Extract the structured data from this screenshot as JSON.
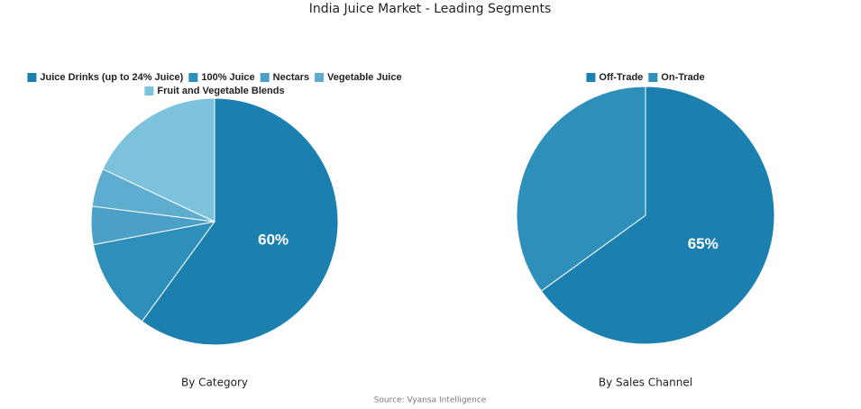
{
  "title": "India Juice Market - Leading Segments",
  "source": "Source: Vyansa Intelligence",
  "chart_data": [
    {
      "type": "pie",
      "subtitle": "By Category",
      "categories": [
        "Juice Drinks (up to 24% Juice)",
        "100% Juice",
        "Nectars",
        "Vegetable Juice",
        "Fruit and Vegetable Blends"
      ],
      "values": [
        60,
        12,
        5,
        5,
        18
      ],
      "value_labels": [
        "60%",
        null,
        null,
        null,
        null
      ],
      "colors": [
        "#1b7fb0",
        "#2f8fbb",
        "#4aa0c6",
        "#5eadd0",
        "#7dc2dc"
      ]
    },
    {
      "type": "pie",
      "subtitle": "By Sales Channel",
      "categories": [
        "Off-Trade",
        "On-Trade"
      ],
      "values": [
        65,
        35
      ],
      "value_labels": [
        "65%",
        null
      ],
      "colors": [
        "#1b7fb0",
        "#2f8fbb"
      ]
    }
  ]
}
